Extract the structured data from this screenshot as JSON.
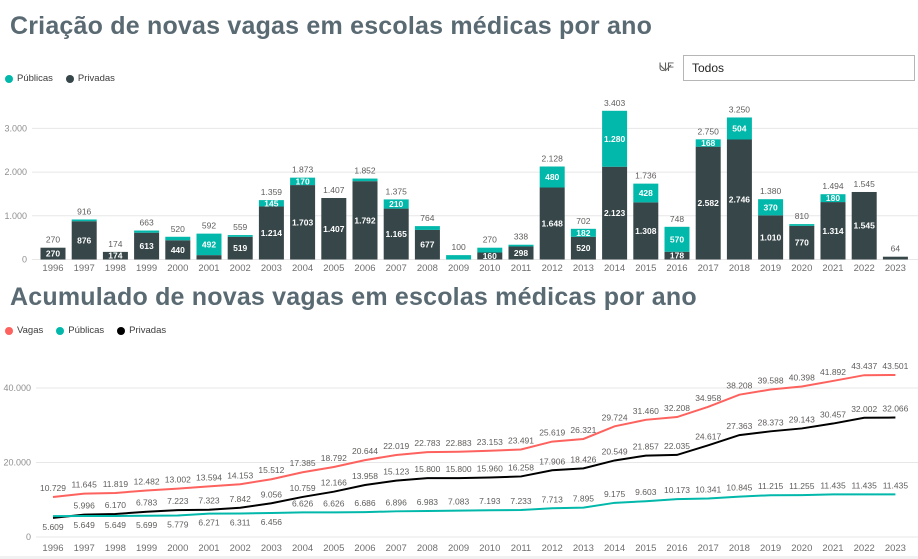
{
  "colors": {
    "teal": "#01B8AA",
    "dark": "#374649",
    "coral": "#FD625E",
    "black": "#000000",
    "title": "#5a6a73",
    "label": "#605e5c",
    "axis": "#8f8f8f",
    "grid": "#e7e7e7"
  },
  "bar_section": {
    "title": "Criação de novas vagas em escolas médicas por ano",
    "legend": [
      {
        "label": "Públicas",
        "color": "#01B8AA"
      },
      {
        "label": "Privadas",
        "color": "#374649"
      }
    ],
    "uf_filter": {
      "label": "UF",
      "value": "Todos"
    }
  },
  "line_section": {
    "title": "Acumulado de novas vagas em escolas médicas por ano",
    "legend": [
      {
        "label": "Vagas",
        "color": "#FD625E"
      },
      {
        "label": "Públicas",
        "color": "#01B8AA"
      },
      {
        "label": "Privadas",
        "color": "#000000"
      }
    ]
  },
  "chart_data": [
    {
      "type": "bar",
      "stacked": true,
      "title": "Criação de novas vagas em escolas médicas por ano",
      "categories": [
        "1996",
        "1997",
        "1998",
        "1999",
        "2000",
        "2001",
        "2002",
        "2003",
        "2004",
        "2005",
        "2006",
        "2007",
        "2008",
        "2009",
        "2010",
        "2011",
        "2012",
        "2013",
        "2014",
        "2015",
        "2016",
        "2017",
        "2018",
        "2019",
        "2020",
        "2021",
        "2022",
        "2023"
      ],
      "series": [
        {
          "name": "Privadas",
          "color": "#374649",
          "values": [
            270,
            876,
            174,
            613,
            440,
            100,
            519,
            1214,
            1703,
            1407,
            1792,
            1165,
            677,
            0,
            160,
            298,
            1648,
            520,
            2123,
            1308,
            178,
            2582,
            2746,
            1010,
            770,
            1314,
            1545,
            64
          ]
        },
        {
          "name": "Públicas",
          "color": "#01B8AA",
          "values": [
            0,
            40,
            0,
            50,
            80,
            492,
            40,
            145,
            170,
            0,
            60,
            210,
            87,
            100,
            110,
            40,
            480,
            182,
            1280,
            428,
            570,
            168,
            504,
            370,
            40,
            180,
            0,
            0
          ]
        }
      ],
      "totals": [
        270,
        916,
        174,
        663,
        520,
        592,
        559,
        1359,
        1873,
        1407,
        1852,
        1375,
        764,
        100,
        270,
        338,
        2128,
        702,
        3403,
        1736,
        748,
        2750,
        3250,
        1380,
        810,
        1494,
        1545,
        64
      ],
      "ylabel": "",
      "xlabel": "",
      "ylim": [
        0,
        3500
      ],
      "yticks": [
        0,
        1000,
        2000,
        3000
      ],
      "grid": true,
      "legend_position": "top-left",
      "segment_label_min_value": 145
    },
    {
      "type": "line",
      "title": "Acumulado de novas vagas em escolas médicas por ano",
      "x": [
        "1996",
        "1997",
        "1998",
        "1999",
        "2000",
        "2001",
        "2002",
        "2003",
        "2004",
        "2005",
        "2006",
        "2007",
        "2008",
        "2009",
        "2010",
        "2011",
        "2012",
        "2013",
        "2014",
        "2015",
        "2016",
        "2017",
        "2018",
        "2019",
        "2020",
        "2021",
        "2022",
        "2023"
      ],
      "series": [
        {
          "name": "Vagas",
          "color": "#FD625E",
          "values": [
            10729,
            11645,
            11819,
            12482,
            13002,
            13594,
            14153,
            15512,
            17385,
            18792,
            20644,
            22019,
            22783,
            22883,
            23153,
            23491,
            25619,
            26321,
            29724,
            31460,
            32208,
            34958,
            38208,
            39588,
            40398,
            41892,
            43437,
            43501
          ]
        },
        {
          "name": "Privadas",
          "color": "#000000",
          "values": [
            5120,
            5996,
            6170,
            6783,
            7223,
            7323,
            7842,
            9056,
            10759,
            12166,
            13958,
            15123,
            15800,
            15800,
            15960,
            16258,
            17906,
            18426,
            20549,
            21857,
            22035,
            24617,
            27363,
            28373,
            29143,
            30457,
            32002,
            32066
          ]
        },
        {
          "name": "Públicas",
          "color": "#01B8AA",
          "values": [
            5609,
            5649,
            5649,
            5699,
            5779,
            6271,
            6311,
            6456,
            6626,
            6626,
            6686,
            6896,
            6983,
            7083,
            7193,
            7233,
            7713,
            7895,
            9175,
            9603,
            10173,
            10341,
            10845,
            11215,
            11255,
            11435,
            11435,
            11435
          ]
        }
      ],
      "ylim": [
        0,
        45000
      ],
      "yticks": [
        0,
        20000,
        40000
      ],
      "grid": true,
      "legend_position": "top-left",
      "hidden_labels": [
        {
          "series": "Privadas",
          "x": "1996"
        }
      ]
    }
  ]
}
